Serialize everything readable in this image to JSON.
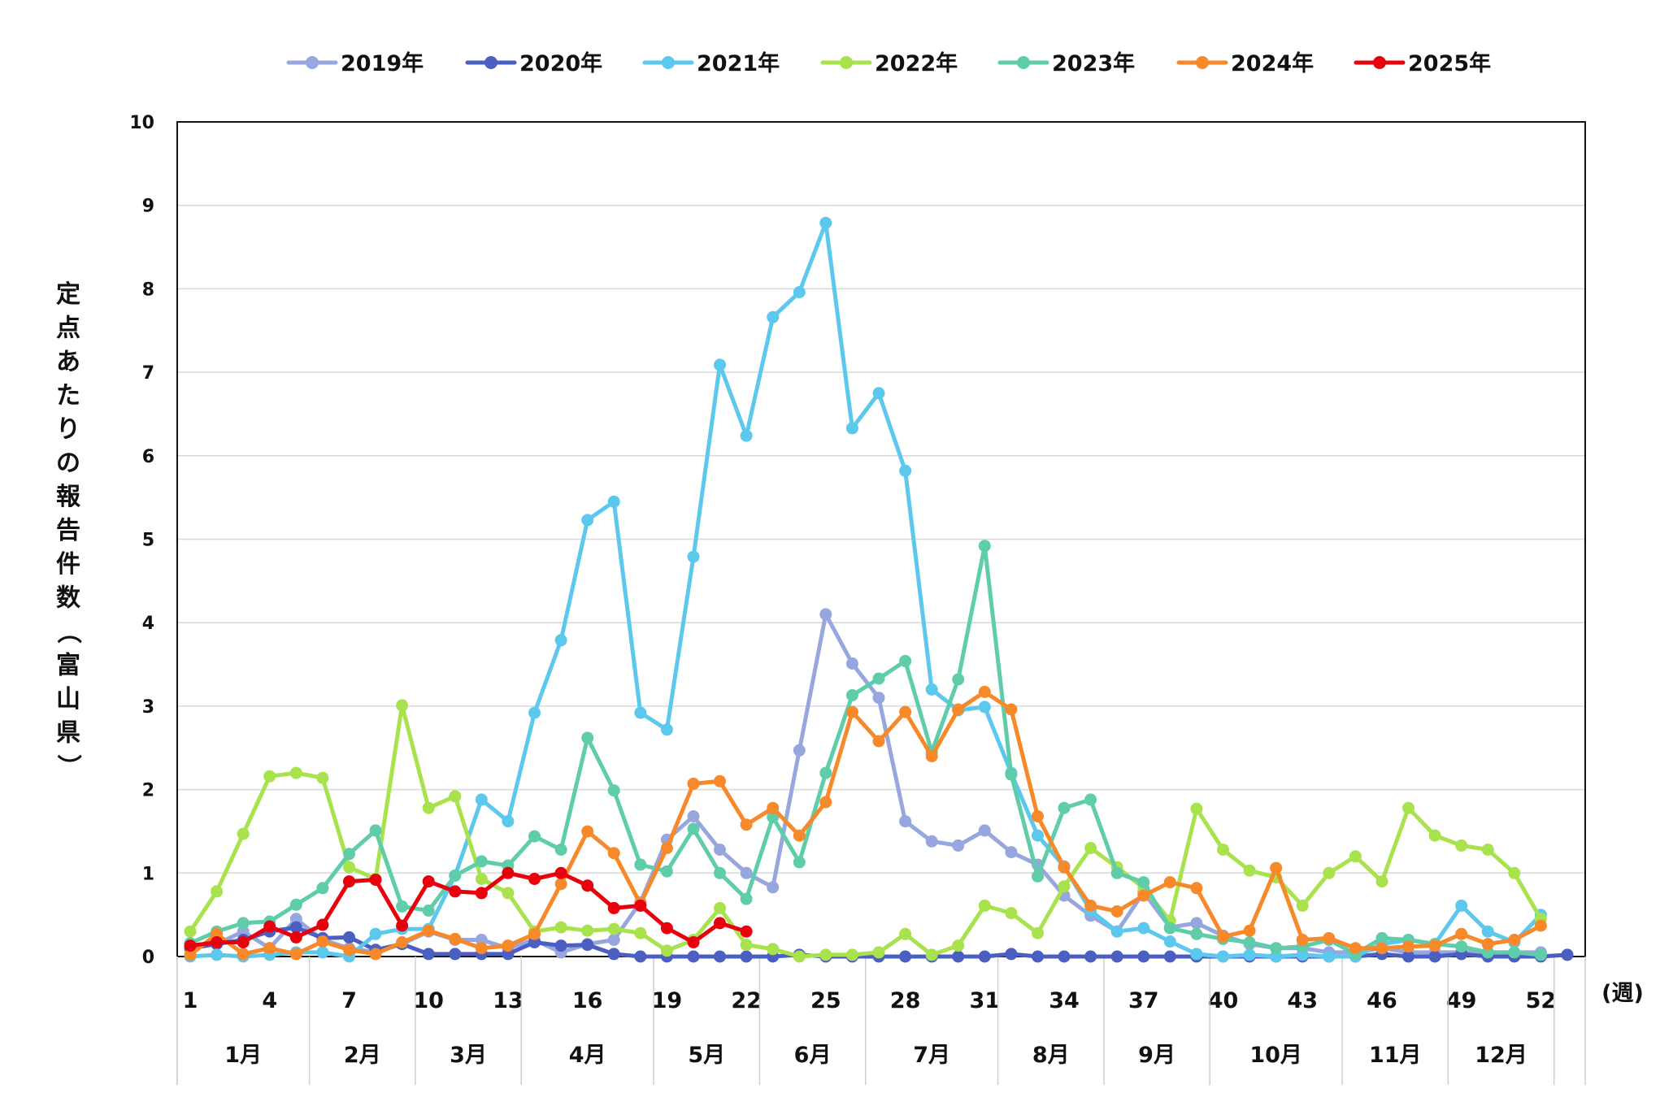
{
  "chart_data": {
    "type": "line",
    "ylabel": "定点あたりの報告件数（富山県）",
    "xunit": "(週)",
    "ylim": [
      0,
      10
    ],
    "yticks": [
      0,
      1,
      2,
      3,
      4,
      5,
      6,
      7,
      8,
      9,
      10
    ],
    "xlim": [
      1,
      53
    ],
    "xticks": [
      1,
      4,
      7,
      10,
      13,
      16,
      19,
      22,
      25,
      28,
      31,
      34,
      37,
      40,
      43,
      46,
      49,
      52
    ],
    "grid": "horizontal",
    "legend_position": "top",
    "months": [
      {
        "label": "1月",
        "start": 1,
        "end": 5
      },
      {
        "label": "2月",
        "start": 6,
        "end": 9
      },
      {
        "label": "3月",
        "start": 10,
        "end": 13
      },
      {
        "label": "4月",
        "start": 14,
        "end": 18
      },
      {
        "label": "5月",
        "start": 19,
        "end": 22
      },
      {
        "label": "6月",
        "start": 23,
        "end": 26
      },
      {
        "label": "7月",
        "start": 27,
        "end": 31
      },
      {
        "label": "8月",
        "start": 32,
        "end": 35
      },
      {
        "label": "9月",
        "start": 36,
        "end": 39
      },
      {
        "label": "10月",
        "start": 40,
        "end": 44
      },
      {
        "label": "11月",
        "start": 45,
        "end": 48
      },
      {
        "label": "12月",
        "start": 49,
        "end": 52
      }
    ],
    "series": [
      {
        "name": "2019年",
        "color": "#97a6de",
        "start": 1,
        "values": [
          0.1,
          0.15,
          0.3,
          0.1,
          0.45,
          0.2,
          0.1,
          0.05,
          0.15,
          0.3,
          0.2,
          0.2,
          0.1,
          0.2,
          0.05,
          0.15,
          0.2,
          0.65,
          1.4,
          1.68,
          1.28,
          1.0,
          0.83,
          2.47,
          4.1,
          3.51,
          3.1,
          1.62,
          1.38,
          1.33,
          1.51,
          1.25,
          1.1,
          0.73,
          0.49,
          0.3,
          0.77,
          0.35,
          0.4,
          0.25,
          0.15,
          0.1,
          0.1,
          0.05,
          0.05,
          0.1,
          0.05,
          0.05,
          0.05,
          0.05,
          0.05,
          0.05
        ]
      },
      {
        "name": "2020年",
        "color": "#4a5fc1",
        "start": 1,
        "values": [
          0.1,
          0.15,
          0.2,
          0.3,
          0.35,
          0.22,
          0.23,
          0.08,
          0.15,
          0.03,
          0.03,
          0.03,
          0.03,
          0.17,
          0.13,
          0.14,
          0.03,
          0.0,
          0.0,
          0.0,
          0.0,
          0.0,
          0.0,
          0.02,
          0.0,
          0.0,
          0.0,
          0.0,
          0.0,
          0.0,
          0.0,
          0.03,
          0.0,
          0.0,
          0.0,
          0.0,
          0.0,
          0.0,
          0.0,
          0.0,
          0.0,
          0.0,
          0.0,
          0.0,
          0.0,
          0.03,
          0.0,
          0.0,
          0.03,
          0.0,
          0.0,
          0.0,
          0.02
        ]
      },
      {
        "name": "2021年",
        "color": "#5cc8ee",
        "start": 1,
        "values": [
          0.0,
          0.02,
          0.0,
          0.02,
          0.05,
          0.05,
          0.0,
          0.27,
          0.33,
          0.33,
          0.97,
          1.88,
          1.62,
          2.92,
          3.79,
          5.23,
          5.45,
          2.92,
          2.72,
          4.79,
          7.09,
          6.24,
          7.66,
          7.96,
          8.79,
          6.33,
          6.75,
          5.82,
          3.2,
          2.95,
          2.99,
          2.2,
          1.45,
          1.08,
          0.55,
          0.3,
          0.34,
          0.18,
          0.03,
          0.0,
          0.02,
          0.0,
          0.02,
          0.0,
          0.0,
          0.15,
          0.2,
          0.15,
          0.61,
          0.3,
          0.17,
          0.5
        ]
      },
      {
        "name": "2022年",
        "color": "#a8e24d",
        "start": 1,
        "values": [
          0.3,
          0.78,
          1.47,
          2.16,
          2.2,
          2.14,
          1.07,
          0.93,
          3.01,
          1.78,
          1.92,
          0.93,
          0.76,
          0.3,
          0.35,
          0.31,
          0.33,
          0.28,
          0.07,
          0.2,
          0.58,
          0.14,
          0.09,
          0.0,
          0.02,
          0.02,
          0.05,
          0.27,
          0.02,
          0.13,
          0.61,
          0.52,
          0.28,
          0.84,
          1.3,
          1.07,
          0.82,
          0.43,
          1.77,
          1.28,
          1.03,
          0.95,
          0.61,
          1.0,
          1.2,
          0.9,
          1.78,
          1.45,
          1.33,
          1.28,
          1.0,
          0.45
        ]
      },
      {
        "name": "2023年",
        "color": "#5fcda9",
        "start": 1,
        "values": [
          0.16,
          0.3,
          0.4,
          0.42,
          0.62,
          0.82,
          1.23,
          1.51,
          0.6,
          0.55,
          0.97,
          1.14,
          1.09,
          1.44,
          1.28,
          2.62,
          1.99,
          1.1,
          1.02,
          1.53,
          1.0,
          0.69,
          1.67,
          1.13,
          2.2,
          3.13,
          3.33,
          3.54,
          2.45,
          3.32,
          4.92,
          2.18,
          0.96,
          1.78,
          1.88,
          1.0,
          0.89,
          0.34,
          0.27,
          0.21,
          0.17,
          0.1,
          0.12,
          0.2,
          0.03,
          0.22,
          0.2,
          0.15,
          0.12,
          0.05,
          0.05,
          0.02
        ]
      },
      {
        "name": "2024年",
        "color": "#f7892a",
        "start": 1,
        "values": [
          0.02,
          0.27,
          0.03,
          0.1,
          0.03,
          0.18,
          0.08,
          0.03,
          0.17,
          0.31,
          0.21,
          0.1,
          0.13,
          0.27,
          0.87,
          1.5,
          1.24,
          0.63,
          1.3,
          2.07,
          2.1,
          1.58,
          1.78,
          1.45,
          1.85,
          2.93,
          2.58,
          2.93,
          2.4,
          2.96,
          3.17,
          2.96,
          1.68,
          1.07,
          0.61,
          0.54,
          0.73,
          0.89,
          0.82,
          0.24,
          0.31,
          1.06,
          0.2,
          0.22,
          0.1,
          0.1,
          0.12,
          0.13,
          0.27,
          0.15,
          0.2,
          0.37
        ]
      },
      {
        "name": "2025年",
        "color": "#e8000c",
        "start": 1,
        "values": [
          0.13,
          0.17,
          0.17,
          0.36,
          0.23,
          0.38,
          0.9,
          0.92,
          0.37,
          0.9,
          0.78,
          0.76,
          1.0,
          0.93,
          1.0,
          0.85,
          0.58,
          0.61,
          0.34,
          0.17,
          0.4,
          0.3
        ]
      }
    ]
  }
}
